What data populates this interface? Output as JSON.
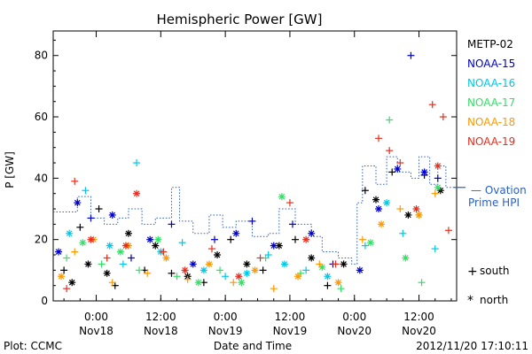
{
  "chart_data": {
    "type": "scatter",
    "title": "Hemispheric Power [GW]",
    "ylabel": "P [GW]",
    "xlabel": "Date and Time",
    "ylim": [
      0,
      88
    ],
    "xlim": [
      "2012-11-17 16:00",
      "2012-11-20 19:00"
    ],
    "yticks": [
      0,
      20,
      40,
      60,
      80
    ],
    "xticks": [
      {
        "t": "2012-11-18 00:00",
        "label1": "0:00",
        "label2": "Nov18"
      },
      {
        "t": "2012-11-18 12:00",
        "label1": "12:00",
        "label2": "Nov18"
      },
      {
        "t": "2012-11-19 00:00",
        "label1": "0:00",
        "label2": "Nov19"
      },
      {
        "t": "2012-11-19 12:00",
        "label1": "12:00",
        "label2": "Nov19"
      },
      {
        "t": "2012-11-20 00:00",
        "label1": "0:00",
        "label2": "Nov20"
      },
      {
        "t": "2012-11-20 12:00",
        "label1": "12:00",
        "label2": "Nov20"
      }
    ],
    "legend_position": "right",
    "series": [
      {
        "name": "METP-02",
        "color": "#000000",
        "points": [
          [
            "2012-11-17 18:00",
            10,
            "s"
          ],
          [
            "2012-11-17 19:30",
            6,
            "n"
          ],
          [
            "2012-11-17 21:00",
            24,
            "s"
          ],
          [
            "2012-11-17 22:30",
            12,
            "n"
          ],
          [
            "2012-11-18 00:30",
            30,
            "s"
          ],
          [
            "2012-11-18 02:00",
            9,
            "n"
          ],
          [
            "2012-11-18 03:30",
            5,
            "s"
          ],
          [
            "2012-11-18 06:00",
            22,
            "n"
          ],
          [
            "2012-11-18 09:00",
            10,
            "s"
          ],
          [
            "2012-11-18 11:00",
            18,
            "n"
          ],
          [
            "2012-11-18 14:00",
            9,
            "s"
          ],
          [
            "2012-11-18 17:00",
            8,
            "n"
          ],
          [
            "2012-11-18 20:00",
            6,
            "s"
          ],
          [
            "2012-11-18 22:30",
            15,
            "n"
          ],
          [
            "2012-11-19 01:00",
            20,
            "s"
          ],
          [
            "2012-11-19 04:00",
            12,
            "n"
          ],
          [
            "2012-11-19 07:00",
            10,
            "s"
          ],
          [
            "2012-11-19 10:00",
            18,
            "n"
          ],
          [
            "2012-11-19 13:00",
            20,
            "s"
          ],
          [
            "2012-11-19 16:00",
            14,
            "n"
          ],
          [
            "2012-11-19 19:00",
            5,
            "s"
          ],
          [
            "2012-11-19 22:00",
            12,
            "n"
          ],
          [
            "2012-11-20 02:00",
            36,
            "s"
          ],
          [
            "2012-11-20 04:00",
            33,
            "n"
          ],
          [
            "2012-11-20 07:00",
            42,
            "s"
          ],
          [
            "2012-11-20 10:00",
            28,
            "n"
          ],
          [
            "2012-11-20 13:00",
            41,
            "s"
          ],
          [
            "2012-11-20 16:00",
            36,
            "n"
          ]
        ]
      },
      {
        "name": "NOAA-15",
        "color": "#0000cc",
        "points": [
          [
            "2012-11-17 17:00",
            16,
            "n"
          ],
          [
            "2012-11-17 20:30",
            32,
            "n"
          ],
          [
            "2012-11-17 23:00",
            27,
            "s"
          ],
          [
            "2012-11-18 03:00",
            28,
            "n"
          ],
          [
            "2012-11-18 06:30",
            14,
            "s"
          ],
          [
            "2012-11-18 10:00",
            20,
            "n"
          ],
          [
            "2012-11-18 14:00",
            25,
            "s"
          ],
          [
            "2012-11-18 18:00",
            12,
            "n"
          ],
          [
            "2012-11-18 22:00",
            20,
            "s"
          ],
          [
            "2012-11-19 02:00",
            22,
            "n"
          ],
          [
            "2012-11-19 05:00",
            26,
            "s"
          ],
          [
            "2012-11-19 09:00",
            18,
            "n"
          ],
          [
            "2012-11-19 12:30",
            25,
            "s"
          ],
          [
            "2012-11-19 16:00",
            22,
            "n"
          ],
          [
            "2012-11-19 20:00",
            12,
            "s"
          ],
          [
            "2012-11-20 01:00",
            10,
            "n"
          ],
          [
            "2012-11-20 04:30",
            30,
            "n"
          ],
          [
            "2012-11-20 08:00",
            43,
            "n"
          ],
          [
            "2012-11-20 10:30",
            80,
            "s"
          ],
          [
            "2012-11-20 13:00",
            42,
            "n"
          ],
          [
            "2012-11-20 15:30",
            40,
            "s"
          ]
        ]
      },
      {
        "name": "NOAA-16",
        "color": "#00c8e6",
        "points": [
          [
            "2012-11-17 19:00",
            22,
            "n"
          ],
          [
            "2012-11-17 22:00",
            36,
            "s"
          ],
          [
            "2012-11-18 02:30",
            18,
            "n"
          ],
          [
            "2012-11-18 05:00",
            12,
            "s"
          ],
          [
            "2012-11-18 07:30",
            45,
            "s"
          ],
          [
            "2012-11-18 12:00",
            16,
            "n"
          ],
          [
            "2012-11-18 16:00",
            19,
            "s"
          ],
          [
            "2012-11-18 20:00",
            10,
            "n"
          ],
          [
            "2012-11-19 00:00",
            8,
            "s"
          ],
          [
            "2012-11-19 04:00",
            9,
            "n"
          ],
          [
            "2012-11-19 08:00",
            15,
            "s"
          ],
          [
            "2012-11-19 11:00",
            12,
            "n"
          ],
          [
            "2012-11-19 15:00",
            10,
            "s"
          ],
          [
            "2012-11-19 19:00",
            8,
            "n"
          ],
          [
            "2012-11-20 02:00",
            18,
            "s"
          ],
          [
            "2012-11-20 06:00",
            32,
            "n"
          ],
          [
            "2012-11-20 09:00",
            22,
            "s"
          ],
          [
            "2012-11-20 12:00",
            28,
            "n"
          ],
          [
            "2012-11-20 15:00",
            17,
            "s"
          ]
        ]
      },
      {
        "name": "NOAA-17",
        "color": "#33e066",
        "points": [
          [
            "2012-11-17 18:30",
            14,
            "s"
          ],
          [
            "2012-11-17 21:30",
            19,
            "n"
          ],
          [
            "2012-11-18 01:00",
            12,
            "s"
          ],
          [
            "2012-11-18 04:30",
            16,
            "n"
          ],
          [
            "2012-11-18 08:00",
            10,
            "s"
          ],
          [
            "2012-11-18 11:30",
            20,
            "n"
          ],
          [
            "2012-11-18 15:00",
            8,
            "s"
          ],
          [
            "2012-11-18 19:00",
            6,
            "n"
          ],
          [
            "2012-11-18 23:00",
            10,
            "s"
          ],
          [
            "2012-11-19 03:00",
            6,
            "n"
          ],
          [
            "2012-11-19 07:30",
            14,
            "s"
          ],
          [
            "2012-11-19 10:30",
            34,
            "n"
          ],
          [
            "2012-11-19 14:00",
            9,
            "s"
          ],
          [
            "2012-11-19 18:00",
            11,
            "n"
          ],
          [
            "2012-11-19 21:30",
            4,
            "s"
          ],
          [
            "2012-11-20 03:00",
            19,
            "n"
          ],
          [
            "2012-11-20 06:30",
            59,
            "s"
          ],
          [
            "2012-11-20 09:30",
            14,
            "n"
          ],
          [
            "2012-11-20 12:30",
            6,
            "s"
          ],
          [
            "2012-11-20 15:30",
            37,
            "n"
          ]
        ]
      },
      {
        "name": "NOAA-18",
        "color": "#ff9900",
        "points": [
          [
            "2012-11-17 17:30",
            8,
            "n"
          ],
          [
            "2012-11-17 20:00",
            16,
            "s"
          ],
          [
            "2012-11-17 23:30",
            20,
            "n"
          ],
          [
            "2012-11-18 03:00",
            6,
            "s"
          ],
          [
            "2012-11-18 06:00",
            18,
            "n"
          ],
          [
            "2012-11-18 09:30",
            9,
            "s"
          ],
          [
            "2012-11-18 13:00",
            14,
            "n"
          ],
          [
            "2012-11-18 17:00",
            7,
            "s"
          ],
          [
            "2012-11-18 21:00",
            12,
            "n"
          ],
          [
            "2012-11-19 01:30",
            6,
            "s"
          ],
          [
            "2012-11-19 05:30",
            10,
            "n"
          ],
          [
            "2012-11-19 09:00",
            4,
            "s"
          ],
          [
            "2012-11-19 13:30",
            8,
            "n"
          ],
          [
            "2012-11-19 17:30",
            12,
            "s"
          ],
          [
            "2012-11-19 21:00",
            6,
            "n"
          ],
          [
            "2012-11-20 01:30",
            20,
            "s"
          ],
          [
            "2012-11-20 05:00",
            25,
            "n"
          ],
          [
            "2012-11-20 08:30",
            30,
            "s"
          ],
          [
            "2012-11-20 12:00",
            28,
            "n"
          ],
          [
            "2012-11-20 15:00",
            35,
            "s"
          ]
        ]
      },
      {
        "name": "NOAA-19",
        "color": "#e62e1e",
        "points": [
          [
            "2012-11-17 18:30",
            4,
            "s"
          ],
          [
            "2012-11-17 20:00",
            39,
            "s"
          ],
          [
            "2012-11-17 23:00",
            20,
            "n"
          ],
          [
            "2012-11-18 02:00",
            14,
            "s"
          ],
          [
            "2012-11-18 05:30",
            18,
            "n"
          ],
          [
            "2012-11-18 07:30",
            35,
            "n"
          ],
          [
            "2012-11-18 12:30",
            16,
            "s"
          ],
          [
            "2012-11-18 16:30",
            10,
            "n"
          ],
          [
            "2012-11-18 21:30",
            17,
            "s"
          ],
          [
            "2012-11-19 02:30",
            8,
            "n"
          ],
          [
            "2012-11-19 06:30",
            14,
            "s"
          ],
          [
            "2012-11-19 12:00",
            32,
            "s"
          ],
          [
            "2012-11-19 15:00",
            20,
            "n"
          ],
          [
            "2012-11-19 20:30",
            12,
            "s"
          ],
          [
            "2012-11-20 04:30",
            53,
            "s"
          ],
          [
            "2012-11-20 06:30",
            49,
            "s"
          ],
          [
            "2012-11-20 08:30",
            45,
            "s"
          ],
          [
            "2012-11-20 11:30",
            30,
            "n"
          ],
          [
            "2012-11-20 14:30",
            64,
            "s"
          ],
          [
            "2012-11-20 15:30",
            44,
            "n"
          ],
          [
            "2012-11-20 16:30",
            60,
            "s"
          ],
          [
            "2012-11-20 17:30",
            23,
            "s"
          ]
        ]
      }
    ],
    "ovation": {
      "label_line1": "— Ovation",
      "label_line2": "Prime HPI",
      "color": "#2a5fc2",
      "steps": [
        [
          "2012-11-17 16:00",
          29
        ],
        [
          "2012-11-17 19:00",
          29
        ],
        [
          "2012-11-17 20:30",
          34
        ],
        [
          "2012-11-17 23:00",
          27
        ],
        [
          "2012-11-18 01:30",
          25
        ],
        [
          "2012-11-18 04:00",
          27
        ],
        [
          "2012-11-18 06:00",
          30
        ],
        [
          "2012-11-18 08:30",
          25
        ],
        [
          "2012-11-18 11:00",
          27
        ],
        [
          "2012-11-18 14:00",
          37
        ],
        [
          "2012-11-18 15:30",
          26
        ],
        [
          "2012-11-18 18:00",
          22
        ],
        [
          "2012-11-18 21:00",
          28
        ],
        [
          "2012-11-18 23:30",
          24
        ],
        [
          "2012-11-19 02:00",
          26
        ],
        [
          "2012-11-19 05:00",
          21
        ],
        [
          "2012-11-19 08:00",
          22
        ],
        [
          "2012-11-19 10:00",
          30
        ],
        [
          "2012-11-19 13:00",
          25
        ],
        [
          "2012-11-19 16:00",
          21
        ],
        [
          "2012-11-19 18:00",
          16
        ],
        [
          "2012-11-19 21:00",
          14
        ],
        [
          "2012-11-19 23:30",
          12
        ],
        [
          "2012-11-20 00:30",
          32
        ],
        [
          "2012-11-20 01:30",
          44
        ],
        [
          "2012-11-20 04:00",
          38
        ],
        [
          "2012-11-20 06:00",
          47
        ],
        [
          "2012-11-20 08:00",
          42
        ],
        [
          "2012-11-20 10:30",
          40
        ],
        [
          "2012-11-20 12:00",
          47
        ],
        [
          "2012-11-20 14:00",
          38
        ],
        [
          "2012-11-20 15:30",
          44
        ],
        [
          "2012-11-20 17:00",
          37
        ],
        [
          "2012-11-20 19:00",
          37
        ]
      ]
    },
    "markers": {
      "south_symbol": "+",
      "south_label": "south",
      "north_symbol": "*",
      "north_label": "north"
    }
  },
  "footer": {
    "plot_credit": "Plot: CCMC",
    "timestamp": "2012/11/20 17:10:11"
  }
}
